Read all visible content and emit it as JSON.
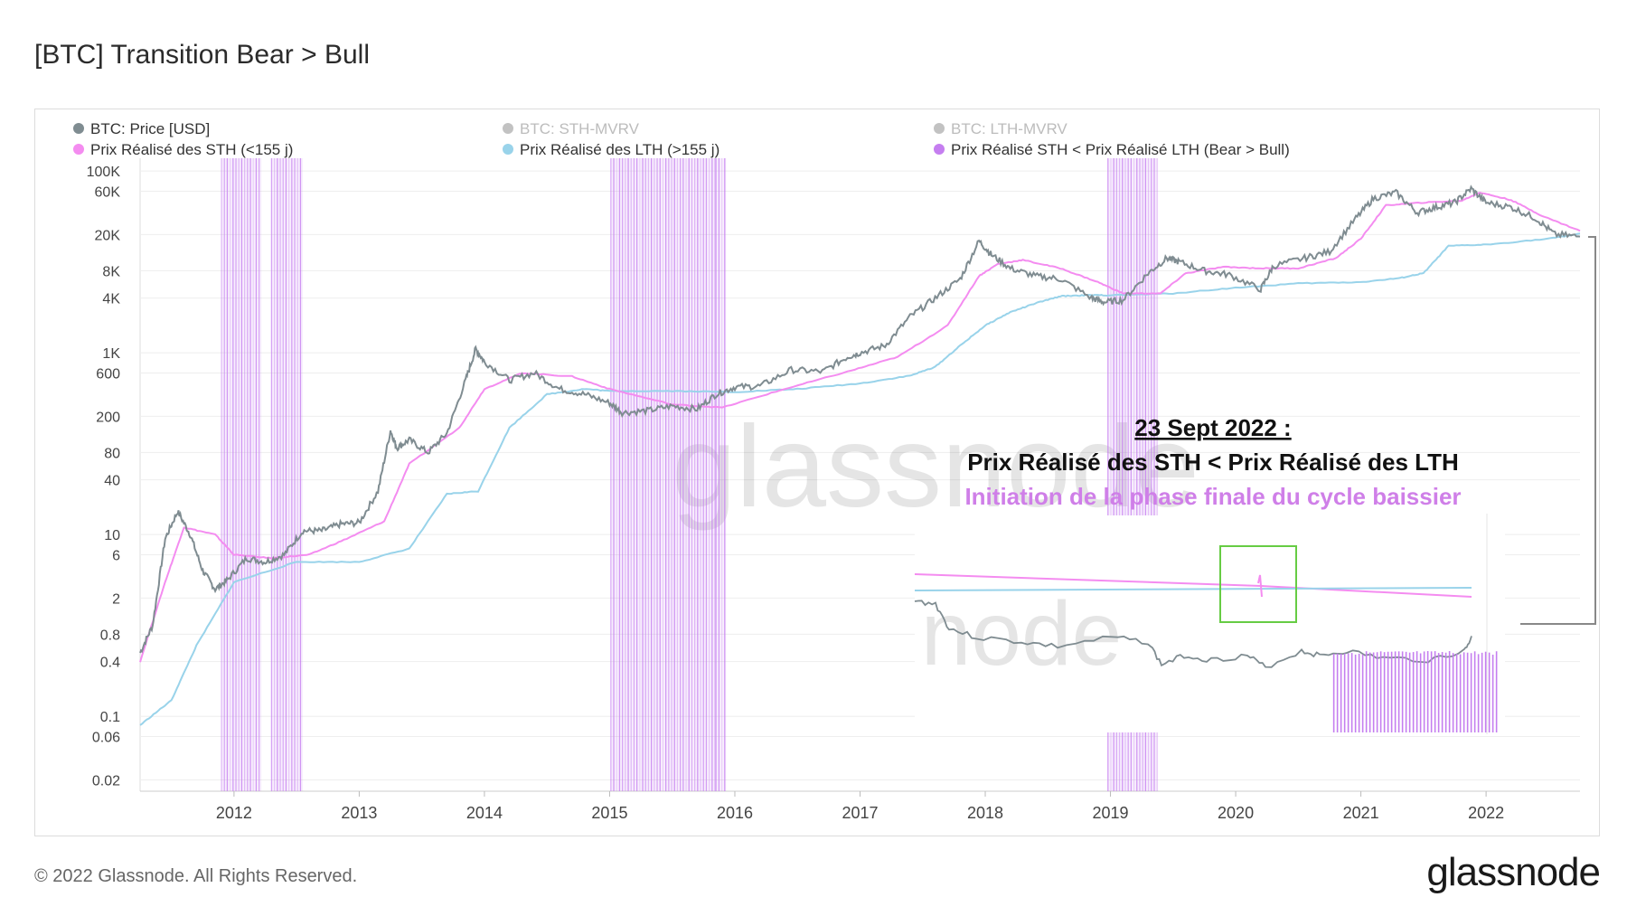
{
  "title": "[BTC] Transition Bear > Bull",
  "footer": {
    "copyright": "© 2022 Glassnode. All Rights Reserved.",
    "logo": "glassnode"
  },
  "watermark": {
    "text": "glassnode"
  },
  "colors": {
    "price": "#7f8c91",
    "sth_realized": "#f48cf0",
    "lth_realized": "#99d3ea",
    "bear_bull": "#c57ef0",
    "legend_muted": "#bcbcbc",
    "inset_box": "#66cc44",
    "annotation_line3": "#cf7fe8",
    "grid": "#eeeeee"
  },
  "annotation": {
    "line1": "23 Sept 2022 :",
    "line2": "Prix Réalisé des STH < Prix Réalisé des LTH",
    "line3": "Initiation de la phase finale du cycle baissier"
  },
  "chart_data": {
    "type": "line",
    "title": "[BTC] Transition Bear > Bull",
    "xlabel": "",
    "ylabel": "",
    "y_scale": "log",
    "ylim": [
      0.015,
      110000
    ],
    "xlim": [
      2011.25,
      2022.75
    ],
    "x_ticks": [
      {
        "value": 2012.0,
        "label": "2012"
      },
      {
        "value": 2013.0,
        "label": "2013"
      },
      {
        "value": 2014.0,
        "label": "2014"
      },
      {
        "value": 2015.0,
        "label": "2015"
      },
      {
        "value": 2016.0,
        "label": "2016"
      },
      {
        "value": 2017.0,
        "label": "2017"
      },
      {
        "value": 2018.0,
        "label": "2018"
      },
      {
        "value": 2019.0,
        "label": "2019"
      },
      {
        "value": 2020.0,
        "label": "2020"
      },
      {
        "value": 2021.0,
        "label": "2021"
      },
      {
        "value": 2022.0,
        "label": "2022"
      }
    ],
    "y_ticks": [
      {
        "value": 100000,
        "label": "100K"
      },
      {
        "value": 60000,
        "label": "60K"
      },
      {
        "value": 20000,
        "label": "20K"
      },
      {
        "value": 8000,
        "label": "8K"
      },
      {
        "value": 4000,
        "label": "4K"
      },
      {
        "value": 1000,
        "label": "1K"
      },
      {
        "value": 600,
        "label": "600"
      },
      {
        "value": 200,
        "label": "200"
      },
      {
        "value": 80,
        "label": "80"
      },
      {
        "value": 40,
        "label": "40"
      },
      {
        "value": 10,
        "label": "10"
      },
      {
        "value": 6,
        "label": "6"
      },
      {
        "value": 2,
        "label": "2"
      },
      {
        "value": 0.8,
        "label": "0.8"
      },
      {
        "value": 0.4,
        "label": "0.4"
      },
      {
        "value": 0.1,
        "label": "0.1"
      },
      {
        "value": 0.06,
        "label": "0.06"
      },
      {
        "value": 0.02,
        "label": "0.02"
      }
    ],
    "legend": [
      {
        "label": "BTC: Price [USD]",
        "color": "#7f8c91",
        "active": true
      },
      {
        "label": "BTC: STH-MVRV",
        "color": "#9a9a9a",
        "active": false
      },
      {
        "label": "BTC: LTH-MVRV",
        "color": "#9a9a9a",
        "active": false
      },
      {
        "label": "Prix Réalisé des STH (<155 j)",
        "color": "#f48cf0",
        "active": true
      },
      {
        "label": "Prix Réalisé des LTH (>155 j)",
        "color": "#99d3ea",
        "active": true
      },
      {
        "label": "Prix Réalisé STH < Prix Réalisé LTH (Bear > Bull)",
        "color": "#c57ef0",
        "active": true
      }
    ],
    "series": [
      {
        "name": "BTC: Price [USD]",
        "x": [
          2011.25,
          2011.35,
          2011.45,
          2011.55,
          2011.65,
          2011.75,
          2011.85,
          2011.95,
          2012.1,
          2012.25,
          2012.4,
          2012.55,
          2012.7,
          2012.85,
          2013.0,
          2013.15,
          2013.25,
          2013.3,
          2013.4,
          2013.55,
          2013.7,
          2013.85,
          2013.93,
          2014.0,
          2014.2,
          2014.4,
          2014.6,
          2014.8,
          2015.0,
          2015.1,
          2015.3,
          2015.5,
          2015.7,
          2015.85,
          2016.0,
          2016.2,
          2016.45,
          2016.7,
          2016.9,
          2017.0,
          2017.2,
          2017.4,
          2017.6,
          2017.8,
          2017.95,
          2018.05,
          2018.2,
          2018.4,
          2018.6,
          2018.85,
          2018.95,
          2019.1,
          2019.3,
          2019.45,
          2019.55,
          2019.75,
          2019.95,
          2020.2,
          2020.3,
          2020.55,
          2020.75,
          2020.95,
          2021.1,
          2021.28,
          2021.45,
          2021.6,
          2021.75,
          2021.88,
          2022.0,
          2022.2,
          2022.4,
          2022.55,
          2022.75
        ],
        "values": [
          0.5,
          1.0,
          9.0,
          18,
          10,
          4,
          2.5,
          3.2,
          5.5,
          5,
          6,
          11,
          11,
          13,
          13.5,
          30,
          140,
          90,
          110,
          80,
          130,
          500,
          1100,
          800,
          500,
          600,
          400,
          350,
          280,
          220,
          230,
          260,
          240,
          350,
          420,
          430,
          650,
          620,
          900,
          1000,
          1200,
          2500,
          4000,
          6500,
          17000,
          12000,
          8500,
          7000,
          6500,
          4000,
          3600,
          3800,
          7500,
          11000,
          10000,
          8000,
          7200,
          5000,
          9000,
          11000,
          13000,
          29000,
          50000,
          58000,
          35000,
          40000,
          45000,
          64000,
          45000,
          40000,
          30000,
          20000,
          19000
        ]
      },
      {
        "name": "Prix Réalisé des STH (<155 j)",
        "x": [
          2011.25,
          2011.45,
          2011.6,
          2011.85,
          2012.0,
          2012.3,
          2012.6,
          2012.9,
          2013.2,
          2013.4,
          2013.8,
          2014.0,
          2014.3,
          2014.7,
          2015.0,
          2015.5,
          2015.9,
          2016.4,
          2016.9,
          2017.3,
          2017.7,
          2017.95,
          2018.1,
          2018.3,
          2018.6,
          2018.9,
          2019.1,
          2019.4,
          2019.6,
          2019.9,
          2020.2,
          2020.5,
          2020.8,
          2021.0,
          2021.2,
          2021.5,
          2021.8,
          2021.95,
          2022.2,
          2022.45,
          2022.75
        ],
        "values": [
          0.4,
          3,
          12,
          10,
          6,
          5.5,
          6,
          9,
          14,
          60,
          150,
          400,
          600,
          550,
          400,
          270,
          250,
          400,
          620,
          900,
          2000,
          7000,
          9500,
          10500,
          8500,
          6000,
          4500,
          4500,
          7500,
          8800,
          8500,
          8500,
          11000,
          18000,
          42000,
          45000,
          47000,
          58000,
          48000,
          32000,
          22000
        ]
      },
      {
        "name": "Prix Réalisé des LTH (>155 j)",
        "x": [
          2011.25,
          2011.5,
          2011.7,
          2012.0,
          2012.5,
          2013.0,
          2013.4,
          2013.7,
          2013.95,
          2014.2,
          2014.5,
          2014.8,
          2015.0,
          2015.5,
          2016.0,
          2016.5,
          2017.0,
          2017.4,
          2017.6,
          2017.8,
          2018.0,
          2018.2,
          2018.4,
          2018.6,
          2018.8,
          2019.0,
          2019.5,
          2020.0,
          2020.5,
          2021.0,
          2021.3,
          2021.5,
          2021.7,
          2022.0,
          2022.5,
          2022.75
        ],
        "values": [
          0.08,
          0.15,
          0.6,
          3,
          5,
          5,
          7,
          28,
          30,
          150,
          350,
          400,
          380,
          380,
          370,
          400,
          460,
          560,
          700,
          1200,
          2000,
          2800,
          3500,
          4200,
          4300,
          4300,
          4500,
          5200,
          5800,
          6000,
          6600,
          7500,
          15000,
          15500,
          18000,
          20500
        ]
      }
    ],
    "bear_bull_ranges": [
      [
        2011.9,
        2012.22
      ],
      [
        2012.3,
        2012.55
      ],
      [
        2015.01,
        2015.85
      ],
      [
        2015.85,
        2015.93
      ],
      [
        2018.98,
        2019.38
      ]
    ],
    "inset_bear_bull_range_fraction": [
      0.71,
      0.99
    ]
  }
}
